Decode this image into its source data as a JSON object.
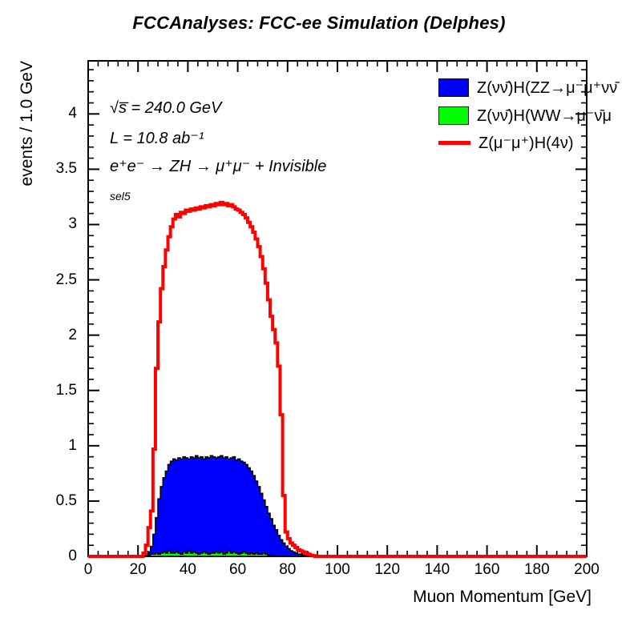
{
  "title": "FCCAnalyses: FCC-ee Simulation (Delphes)",
  "annotations": {
    "sqrt_s": "√s̅ = 240.0 GeV",
    "lumi": "L = 10.8 ab⁻¹",
    "process": "e⁺e⁻ → ZH → μ⁺μ⁻ + Invisible",
    "selection": "sel5"
  },
  "legend": [
    {
      "label": "Z(νν̄)H(ZZ→μ⁻μ⁺νν̄",
      "color": "#0000ff",
      "type": "fill"
    },
    {
      "label": "Z(νν̄)H(WW→μ⁻ν̄μ",
      "color": "#00ff00",
      "type": "fill"
    },
    {
      "label": "Z(μ⁻μ⁺)H(4ν)",
      "color": "#ff0000",
      "type": "line"
    }
  ],
  "chart_data": {
    "type": "bar",
    "subtype": "step-histogram",
    "title": "FCCAnalyses: FCC-ee Simulation (Delphes)",
    "xlabel": "Muon Momentum [GeV]",
    "ylabel": "events / 1.0 GeV",
    "xlim": [
      0,
      200
    ],
    "ylim": [
      0,
      4.48
    ],
    "xticks": [
      0,
      20,
      40,
      60,
      80,
      100,
      120,
      140,
      160,
      180,
      200
    ],
    "yticks": [
      0,
      0.5,
      1,
      1.5,
      2,
      2.5,
      3,
      3.5,
      4
    ],
    "x_minor_step": 4,
    "y_minor_step": 0.1,
    "bin_width": 1.0,
    "grid": false,
    "legend_position": "top-right",
    "series": [
      {
        "id": "zvv-h-zz",
        "name": "Z(νν̄)H(ZZ→μ⁻μ⁺νν̄",
        "style": "fill",
        "color": "#0000ff",
        "first_bin_x": 23,
        "values": [
          0.01,
          0.04,
          0.09,
          0.2,
          0.35,
          0.52,
          0.63,
          0.71,
          0.77,
          0.83,
          0.86,
          0.88,
          0.87,
          0.89,
          0.88,
          0.9,
          0.89,
          0.88,
          0.9,
          0.89,
          0.91,
          0.89,
          0.9,
          0.88,
          0.9,
          0.89,
          0.91,
          0.9,
          0.89,
          0.9,
          0.91,
          0.89,
          0.9,
          0.88,
          0.89,
          0.9,
          0.87,
          0.88,
          0.86,
          0.85,
          0.83,
          0.8,
          0.77,
          0.73,
          0.68,
          0.63,
          0.57,
          0.51,
          0.45,
          0.39,
          0.34,
          0.28,
          0.24,
          0.19,
          0.15,
          0.12,
          0.09,
          0.07,
          0.05,
          0.04,
          0.03,
          0.02,
          0.02,
          0.01,
          0.01,
          0.01,
          0.005
        ]
      },
      {
        "id": "zvv-h-ww",
        "name": "Z(νν̄)H(WW→μ⁻ν̄μ",
        "style": "fill",
        "color": "#00ff00",
        "first_bin_x": 23,
        "values": [
          0.005,
          0.01,
          0.02,
          0.02,
          0.03,
          0.02,
          0.03,
          0.04,
          0.03,
          0.05,
          0.03,
          0.03,
          0.04,
          0.03,
          0.02,
          0.04,
          0.03,
          0.05,
          0.03,
          0.04,
          0.03,
          0.02,
          0.03,
          0.04,
          0.03,
          0.02,
          0.03,
          0.03,
          0.04,
          0.03,
          0.04,
          0.02,
          0.03,
          0.05,
          0.03,
          0.04,
          0.03,
          0.02,
          0.03,
          0.04,
          0.03,
          0.02,
          0.03,
          0.02,
          0.03,
          0.02,
          0.02,
          0.03,
          0.02,
          0.01,
          0.01
        ]
      },
      {
        "id": "zmm-h-4v",
        "name": "Z(μ⁻μ⁺)H(4ν)",
        "style": "line",
        "color": "#ff0000",
        "first_bin_x": 22,
        "values": [
          0.03,
          0.1,
          0.26,
          0.41,
          0.97,
          1.7,
          2.12,
          2.42,
          2.62,
          2.77,
          2.89,
          2.98,
          3.05,
          3.09,
          3.07,
          3.11,
          3.1,
          3.13,
          3.12,
          3.14,
          3.13,
          3.15,
          3.14,
          3.16,
          3.15,
          3.17,
          3.16,
          3.18,
          3.17,
          3.19,
          3.18,
          3.2,
          3.18,
          3.19,
          3.17,
          3.18,
          3.16,
          3.14,
          3.13,
          3.11,
          3.09,
          3.06,
          3.02,
          2.98,
          2.93,
          2.87,
          2.8,
          2.71,
          2.6,
          2.47,
          2.32,
          2.17,
          2.05,
          1.93,
          1.72,
          1.28,
          0.55,
          0.22,
          0.16,
          0.12,
          0.1,
          0.08,
          0.06,
          0.05,
          0.04,
          0.03,
          0.02,
          0.01,
          0.005
        ]
      }
    ]
  }
}
